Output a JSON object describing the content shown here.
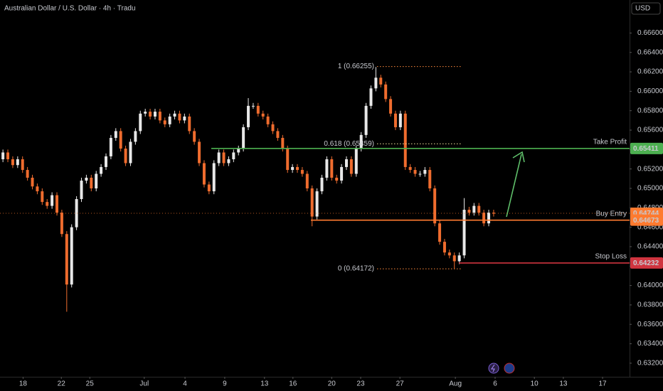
{
  "chart_data": {
    "type": "candlestick",
    "title": "Australian Dollar / U.S. Dollar · 4h · Tradu",
    "currency": "USD",
    "up_color": "#e8e8e8",
    "down_color": "#ef6c2e",
    "open": [
      0.653,
      0.6537,
      0.653,
      0.6524,
      0.653,
      0.6519,
      0.6511,
      0.6502,
      0.6497,
      0.6486,
      0.6482,
      0.6493,
      0.6475,
      0.6453,
      0.6401,
      0.646,
      0.6489,
      0.6508,
      0.6511,
      0.65,
      0.6515,
      0.6522,
      0.6533,
      0.6552,
      0.6559,
      0.6541,
      0.6526,
      0.6548,
      0.6559,
      0.6577,
      0.6579,
      0.6574,
      0.6579,
      0.657,
      0.6566,
      0.6574,
      0.6577,
      0.657,
      0.6574,
      0.6559,
      0.6548,
      0.6526,
      0.6504,
      0.6497,
      0.6526,
      0.6537,
      0.6526,
      0.653,
      0.6537,
      0.6541,
      0.6563,
      0.6585,
      0.6585,
      0.6577,
      0.6574,
      0.6566,
      0.6559,
      0.6552,
      0.6541,
      0.6519,
      0.6522,
      0.6519,
      0.6515,
      0.65,
      0.6471,
      0.6497,
      0.6511,
      0.653,
      0.6511,
      0.6508,
      0.6522,
      0.653,
      0.6515,
      0.6541,
      0.6555,
      0.6585,
      0.6603,
      0.6614,
      0.6607,
      0.6592,
      0.6577,
      0.6563,
      0.6577,
      0.6522,
      0.6519,
      0.6515,
      0.6515,
      0.6519,
      0.65,
      0.6464,
      0.6445,
      0.6434,
      0.6431,
      0.6425,
      0.6431,
      0.6478,
      0.6475,
      0.6482,
      0.6475,
      0.6464,
      0.6475
    ],
    "high": [
      0.654,
      0.654,
      0.6533,
      0.6533,
      0.6533,
      0.6522,
      0.6514,
      0.6505,
      0.65,
      0.6489,
      0.6496,
      0.6496,
      0.6478,
      0.6456,
      0.6463,
      0.6492,
      0.6511,
      0.6514,
      0.6514,
      0.6518,
      0.6525,
      0.6536,
      0.6555,
      0.6562,
      0.6562,
      0.6544,
      0.6551,
      0.6562,
      0.658,
      0.6582,
      0.6582,
      0.6582,
      0.6582,
      0.6573,
      0.6577,
      0.658,
      0.658,
      0.6577,
      0.6577,
      0.6562,
      0.6551,
      0.6529,
      0.6507,
      0.6529,
      0.654,
      0.654,
      0.6533,
      0.654,
      0.6544,
      0.6566,
      0.6593,
      0.6588,
      0.6588,
      0.658,
      0.6577,
      0.6569,
      0.6562,
      0.6555,
      0.6544,
      0.6525,
      0.6525,
      0.6522,
      0.6518,
      0.6503,
      0.65,
      0.6514,
      0.6533,
      0.6533,
      0.6514,
      0.6525,
      0.6533,
      0.6533,
      0.6544,
      0.6558,
      0.6588,
      0.6606,
      0.6625,
      0.6617,
      0.661,
      0.6595,
      0.658,
      0.658,
      0.658,
      0.6525,
      0.6522,
      0.6518,
      0.6522,
      0.6522,
      0.6503,
      0.6467,
      0.6448,
      0.6437,
      0.6434,
      0.6434,
      0.649,
      0.6481,
      0.6485,
      0.6485,
      0.6478,
      0.6478,
      0.6478
    ],
    "low": [
      0.6527,
      0.6527,
      0.6521,
      0.6521,
      0.6516,
      0.6508,
      0.6499,
      0.6494,
      0.6483,
      0.6479,
      0.6479,
      0.6472,
      0.645,
      0.6373,
      0.6398,
      0.6457,
      0.6486,
      0.6505,
      0.6497,
      0.6497,
      0.6512,
      0.6519,
      0.653,
      0.6549,
      0.6538,
      0.6523,
      0.6523,
      0.6545,
      0.6556,
      0.6574,
      0.6571,
      0.6571,
      0.6567,
      0.6563,
      0.6563,
      0.6571,
      0.6567,
      0.6567,
      0.6556,
      0.6545,
      0.6523,
      0.6501,
      0.6494,
      0.6494,
      0.6523,
      0.6523,
      0.6523,
      0.6527,
      0.6534,
      0.6538,
      0.656,
      0.6582,
      0.6574,
      0.6571,
      0.6563,
      0.6556,
      0.6549,
      0.6538,
      0.6516,
      0.6516,
      0.6516,
      0.6512,
      0.6497,
      0.6461,
      0.6468,
      0.6494,
      0.6508,
      0.6508,
      0.6505,
      0.6505,
      0.6519,
      0.6512,
      0.6512,
      0.6538,
      0.6552,
      0.6582,
      0.66,
      0.6604,
      0.6589,
      0.6574,
      0.656,
      0.656,
      0.6519,
      0.6516,
      0.6512,
      0.6512,
      0.6512,
      0.6497,
      0.6461,
      0.6442,
      0.6431,
      0.6428,
      0.6417,
      0.6422,
      0.6428,
      0.6472,
      0.6472,
      0.6472,
      0.6461,
      0.6461,
      0.6471
    ],
    "close": [
      0.6537,
      0.653,
      0.6524,
      0.653,
      0.6519,
      0.6511,
      0.6502,
      0.6497,
      0.6486,
      0.6482,
      0.6493,
      0.6475,
      0.6453,
      0.6401,
      0.646,
      0.6489,
      0.6508,
      0.6511,
      0.65,
      0.6515,
      0.6522,
      0.6533,
      0.6552,
      0.6559,
      0.6541,
      0.6526,
      0.6548,
      0.6559,
      0.6577,
      0.6579,
      0.6574,
      0.6579,
      0.657,
      0.6566,
      0.6574,
      0.6577,
      0.657,
      0.6574,
      0.6559,
      0.6548,
      0.6526,
      0.6504,
      0.6497,
      0.6526,
      0.6537,
      0.6526,
      0.653,
      0.6537,
      0.6541,
      0.6563,
      0.6585,
      0.6585,
      0.6577,
      0.6574,
      0.6566,
      0.6559,
      0.6552,
      0.6541,
      0.6519,
      0.6522,
      0.6519,
      0.6515,
      0.65,
      0.6471,
      0.6497,
      0.6511,
      0.653,
      0.6511,
      0.6508,
      0.6522,
      0.653,
      0.6515,
      0.6541,
      0.6555,
      0.6585,
      0.6603,
      0.6614,
      0.6607,
      0.6592,
      0.6577,
      0.6563,
      0.6577,
      0.6522,
      0.6519,
      0.6515,
      0.6515,
      0.6519,
      0.65,
      0.6464,
      0.6445,
      0.6434,
      0.6431,
      0.6425,
      0.6431,
      0.6478,
      0.6475,
      0.6482,
      0.6475,
      0.6464,
      0.6475,
      0.6474
    ],
    "xlim": [
      -0.6,
      127.7
    ],
    "xticks": [
      {
        "value": 4.1,
        "label": "18"
      },
      {
        "value": 11.9,
        "label": "22"
      },
      {
        "value": 17.7,
        "label": "25"
      },
      {
        "value": 28.8,
        "label": "Jul"
      },
      {
        "value": 37.1,
        "label": "4"
      },
      {
        "value": 45.2,
        "label": "9"
      },
      {
        "value": 53.3,
        "label": "13"
      },
      {
        "value": 59.1,
        "label": "16"
      },
      {
        "value": 67.0,
        "label": "20"
      },
      {
        "value": 72.9,
        "label": "23"
      },
      {
        "value": 80.9,
        "label": "27"
      },
      {
        "value": 92.2,
        "label": "Aug"
      },
      {
        "value": 100.3,
        "label": "6"
      },
      {
        "value": 108.3,
        "label": "10"
      },
      {
        "value": 114.2,
        "label": "13"
      },
      {
        "value": 122.2,
        "label": "17"
      }
    ],
    "ylim": [
      0.6306,
      0.6694
    ],
    "yticks": [
      {
        "value": 0.632,
        "label": "0.63200"
      },
      {
        "value": 0.634,
        "label": "0.63400"
      },
      {
        "value": 0.636,
        "label": "0.63600"
      },
      {
        "value": 0.638,
        "label": "0.63800"
      },
      {
        "value": 0.64,
        "label": "0.64000"
      },
      {
        "value": 0.642,
        "label": "0.64200"
      },
      {
        "value": 0.644,
        "label": "0.64400"
      },
      {
        "value": 0.646,
        "label": "0.64600"
      },
      {
        "value": 0.648,
        "label": "0.64800"
      },
      {
        "value": 0.65,
        "label": "0.65000"
      },
      {
        "value": 0.652,
        "label": "0.65200"
      },
      {
        "value": 0.654,
        "label": "0.65400"
      },
      {
        "value": 0.656,
        "label": "0.65600"
      },
      {
        "value": 0.658,
        "label": "0.65800"
      },
      {
        "value": 0.66,
        "label": "0.66000"
      },
      {
        "value": 0.662,
        "label": "0.66200"
      },
      {
        "value": 0.664,
        "label": "0.66400"
      },
      {
        "value": 0.666,
        "label": "0.66600"
      }
    ],
    "last_price": 0.64744,
    "levels": [
      {
        "label": "Take Profit",
        "value": 0.65411,
        "color": "#4caf50"
      },
      {
        "label": "Buy Entry",
        "value": 0.64673,
        "color": "#ff7a2f"
      },
      {
        "label": "Stop Loss",
        "value": 0.64232,
        "color": "#d0343f"
      }
    ],
    "fib": [
      {
        "label": "1 (0.66255)",
        "value": 0.66255,
        "color": "#ff8a3d"
      },
      {
        "label": "0.618 (0.65459)",
        "value": 0.65459,
        "color": "#f5e6a0"
      },
      {
        "label": "0 (0.64172)",
        "value": 0.64172,
        "color": "#ff8a3d"
      }
    ]
  }
}
